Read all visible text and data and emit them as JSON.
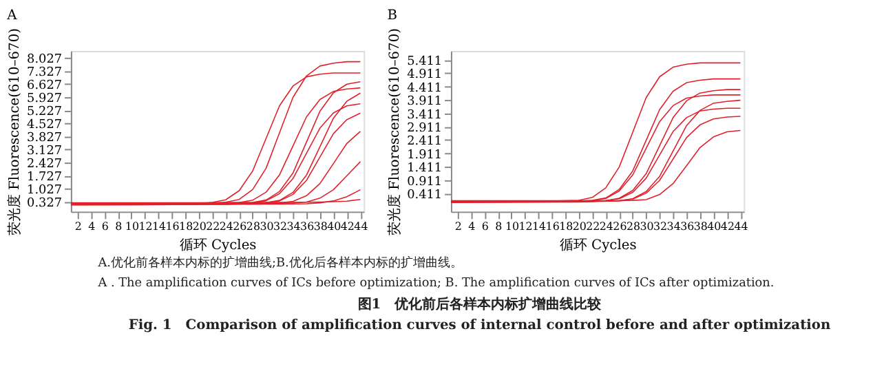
{
  "chart_data": [
    {
      "type": "line",
      "title": "A",
      "xlabel": "循环 Cycles",
      "ylabel": "荧光度 Fluorescence(610–670)",
      "x": [
        1,
        10,
        20,
        22,
        24,
        26,
        28,
        30,
        32,
        34,
        36,
        38,
        40,
        42,
        44
      ],
      "xlim": [
        1,
        44.5
      ],
      "xticks": [
        2,
        4,
        6,
        8,
        10,
        12,
        14,
        16,
        18,
        20,
        22,
        24,
        26,
        28,
        30,
        32,
        34,
        36,
        38,
        40,
        42,
        44
      ],
      "ylim": [
        -0.2,
        8.4
      ],
      "yticks": [
        0.327,
        1.027,
        1.727,
        2.427,
        3.127,
        3.827,
        4.527,
        5.227,
        5.927,
        6.627,
        7.327,
        8.027
      ],
      "series": [
        {
          "color": "#e0202c",
          "values": [
            0.18,
            0.19,
            0.21,
            0.29,
            0.43,
            0.92,
            1.97,
            3.72,
            5.47,
            6.52,
            7.01,
            7.15,
            7.22,
            7.22,
            7.22
          ]
        },
        {
          "color": "#e0202c",
          "values": [
            0.2,
            0.2,
            0.22,
            0.23,
            0.3,
            0.45,
            0.98,
            2.12,
            4.02,
            5.92,
            7.06,
            7.59,
            7.74,
            7.82,
            7.82
          ]
        },
        {
          "color": "#e0202c",
          "values": [
            0.24,
            0.24,
            0.25,
            0.25,
            0.26,
            0.28,
            0.41,
            0.84,
            1.77,
            3.32,
            4.87,
            5.8,
            6.23,
            6.36,
            6.42
          ]
        },
        {
          "color": "#e0202c",
          "values": [
            0.16,
            0.17,
            0.18,
            0.19,
            0.2,
            0.21,
            0.27,
            0.38,
            0.76,
            1.57,
            2.92,
            4.27,
            5.08,
            5.46,
            5.57
          ]
        },
        {
          "color": "#e0202c",
          "values": [
            0.26,
            0.26,
            0.26,
            0.26,
            0.27,
            0.27,
            0.29,
            0.42,
            0.88,
            1.87,
            3.52,
            5.17,
            6.16,
            6.62,
            6.75
          ]
        },
        {
          "color": "#e0202c",
          "values": [
            0.21,
            0.21,
            0.21,
            0.22,
            0.22,
            0.23,
            0.24,
            0.27,
            0.37,
            0.72,
            1.47,
            2.72,
            3.97,
            4.72,
            5.07
          ]
        },
        {
          "color": "#e0202c",
          "values": [
            0.23,
            0.22,
            0.23,
            0.23,
            0.24,
            0.24,
            0.25,
            0.28,
            0.4,
            0.83,
            1.75,
            3.27,
            4.8,
            5.71,
            6.14
          ]
        },
        {
          "color": "#e0202c",
          "values": [
            0.19,
            0.19,
            0.2,
            0.2,
            0.2,
            0.21,
            0.21,
            0.22,
            0.26,
            0.35,
            0.65,
            1.3,
            2.37,
            3.45,
            4.09
          ]
        },
        {
          "color": "#e0202c",
          "values": [
            0.25,
            0.24,
            0.24,
            0.24,
            0.24,
            0.24,
            0.25,
            0.25,
            0.25,
            0.26,
            0.31,
            0.52,
            0.97,
            1.72,
            2.47
          ]
        },
        {
          "color": "#e0202c",
          "values": [
            0.17,
            0.17,
            0.18,
            0.18,
            0.18,
            0.19,
            0.19,
            0.2,
            0.2,
            0.21,
            0.22,
            0.27,
            0.37,
            0.6,
            0.97
          ]
        },
        {
          "color": "#e0202c",
          "values": [
            0.27,
            0.27,
            0.27,
            0.28,
            0.28,
            0.28,
            0.28,
            0.29,
            0.29,
            0.29,
            0.3,
            0.31,
            0.33,
            0.36,
            0.45
          ]
        }
      ]
    },
    {
      "type": "line",
      "title": "B",
      "xlabel": "循环 Cycles",
      "ylabel": "荧光度 Fluorescence(610–670)",
      "x": [
        1,
        10,
        20,
        22,
        24,
        26,
        28,
        30,
        32,
        34,
        36,
        38,
        40,
        42,
        44
      ],
      "xlim": [
        1,
        44.5
      ],
      "xticks": [
        2,
        4,
        6,
        8,
        10,
        12,
        14,
        16,
        18,
        20,
        22,
        24,
        26,
        28,
        30,
        32,
        34,
        36,
        38,
        40,
        42,
        44
      ],
      "ylim": [
        -0.27,
        5.75
      ],
      "yticks": [
        0.411,
        0.911,
        1.411,
        1.911,
        2.411,
        2.911,
        3.411,
        3.911,
        4.411,
        4.911,
        5.411
      ],
      "series": [
        {
          "color": "#e0202c",
          "values": [
            0.08,
            0.09,
            0.15,
            0.26,
            0.62,
            1.4,
            2.7,
            4.0,
            4.78,
            5.14,
            5.25,
            5.3,
            5.3,
            5.3,
            5.3
          ]
        },
        {
          "color": "#e0202c",
          "values": [
            0.12,
            0.12,
            0.12,
            0.15,
            0.24,
            0.56,
            1.25,
            2.4,
            3.55,
            4.24,
            4.56,
            4.65,
            4.7,
            4.7,
            4.7
          ]
        },
        {
          "color": "#e0202c",
          "values": [
            0.09,
            0.09,
            0.1,
            0.14,
            0.22,
            0.5,
            1.1,
            2.1,
            3.1,
            3.7,
            3.98,
            4.06,
            4.1,
            4.1,
            4.1
          ]
        },
        {
          "color": "#e0202c",
          "values": [
            0.11,
            0.11,
            0.11,
            0.12,
            0.14,
            0.23,
            0.52,
            1.15,
            2.2,
            3.25,
            3.88,
            4.17,
            4.26,
            4.3,
            4.3
          ]
        },
        {
          "color": "#e0202c",
          "values": [
            0.07,
            0.08,
            0.09,
            0.1,
            0.14,
            0.21,
            0.45,
            0.98,
            1.85,
            2.73,
            3.25,
            3.5,
            3.57,
            3.6,
            3.6
          ]
        },
        {
          "color": "#e0202c",
          "values": [
            0.13,
            0.13,
            0.12,
            0.12,
            0.12,
            0.14,
            0.21,
            0.48,
            1.05,
            2.0,
            2.95,
            3.52,
            3.79,
            3.86,
            3.9
          ]
        },
        {
          "color": "#e0202c",
          "values": [
            0.1,
            0.1,
            0.11,
            0.11,
            0.12,
            0.13,
            0.2,
            0.42,
            0.9,
            1.7,
            2.5,
            2.98,
            3.2,
            3.27,
            3.3
          ]
        },
        {
          "color": "#e0202c",
          "values": [
            0.14,
            0.14,
            0.14,
            0.14,
            0.14,
            0.14,
            0.15,
            0.18,
            0.37,
            0.78,
            1.45,
            2.13,
            2.53,
            2.72,
            2.77
          ]
        }
      ]
    },
    {
      "type": "other",
      "annotations": [
        "A.优化前各样本内标的扩增曲线;B.优化后各样本内标的扩增曲线。",
        "A . The amplification curves of ICs before optimization; B. The amplification curves of ICs after optimization.",
        "图1　优化前后各样本内标扩增曲线比较",
        "Fig. 1　Comparison of amplification curves of internal control before and after optimization"
      ]
    }
  ]
}
